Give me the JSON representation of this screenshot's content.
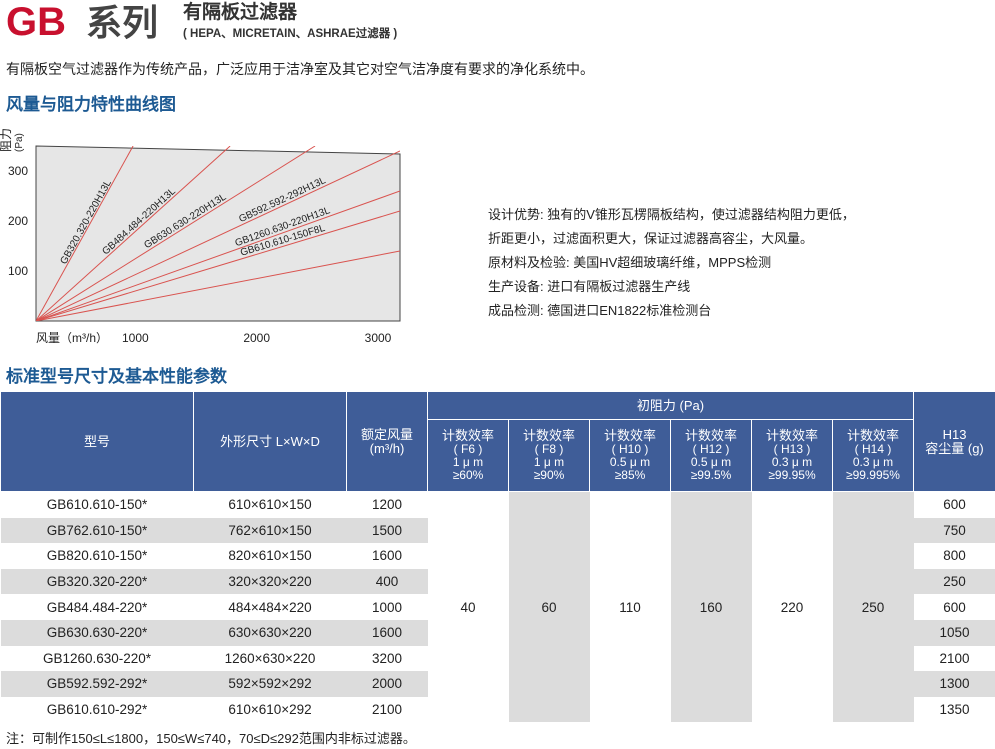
{
  "header": {
    "brand": "GB",
    "series": "系列",
    "subtitle": "有隔板过滤器",
    "standards": "( HEPA、MICRETAIN、ASHRAE过滤器 )",
    "intro": "有隔板空气过滤器作为传统产品，广泛应用于洁净室及其它对空气洁净度有要求的净化系统中。"
  },
  "section_titles": {
    "curve": "风量与阻力特性曲线图",
    "specs": "标准型号尺寸及基本性能参数"
  },
  "chart_data": {
    "type": "line",
    "title": "",
    "ylabel": "阻力",
    "ylabel_unit": "(Pa)",
    "xlabel": "风量（m³/h）",
    "xlim": [
      0,
      3000
    ],
    "ylim": [
      0,
      350
    ],
    "x_ticks": [
      "1000",
      "2000",
      "3000"
    ],
    "y_ticks": [
      "100",
      "200",
      "300"
    ],
    "grid": false,
    "series_color": "#d9534f",
    "series": [
      {
        "name": "GB320.320-220H13L",
        "x": [
          0,
          800
        ],
        "y": [
          0,
          350
        ]
      },
      {
        "name": "GB484.484-220H13L",
        "x": [
          0,
          1600
        ],
        "y": [
          0,
          350
        ]
      },
      {
        "name": "GB630.630-220H13L",
        "x": [
          0,
          2300
        ],
        "y": [
          0,
          350
        ]
      },
      {
        "name": "GB592.592-292H13L",
        "x": [
          0,
          3000
        ],
        "y": [
          0,
          340
        ]
      },
      {
        "name": "GB1260.630-220H13L",
        "x": [
          0,
          3000
        ],
        "y": [
          0,
          260
        ]
      },
      {
        "name": "GB610.610-150F8L",
        "x": [
          0,
          3000
        ],
        "y": [
          0,
          220
        ]
      },
      {
        "name": "",
        "x": [
          0,
          3000
        ],
        "y": [
          0,
          140
        ]
      }
    ]
  },
  "features": [
    "设计优势: 独有的V锥形瓦楞隔板结构，使过滤器结构阻力更低，",
    "折距更小，过滤面积更大，保证过滤器高容尘，大风量。",
    "原材料及检验: 美国HV超细玻璃纤维，MPPS检测",
    "生产设备: 进口有隔板过滤器生产线",
    "成品检测: 德国进口EN1822标准检测台"
  ],
  "table": {
    "col_model": "型号",
    "col_size": "外形尺寸 L×W×D",
    "col_airflow": "额定风量",
    "col_airflow_unit": "(m³/h)",
    "col_resistance": "初阻力 (Pa)",
    "col_dust_1": "H13",
    "col_dust_2": "容尘量 (g)",
    "efficiency_cols": [
      {
        "label": "计数效率",
        "grade": "( F6 )",
        "particle": "1 μ m",
        "eff": "≥60%",
        "value": "40"
      },
      {
        "label": "计数效率",
        "grade": "( F8 )",
        "particle": "1 μ m",
        "eff": "≥90%",
        "value": "60"
      },
      {
        "label": "计数效率",
        "grade": "( H10 )",
        "particle": "0.5 μ m",
        "eff": "≥85%",
        "value": "110"
      },
      {
        "label": "计数效率",
        "grade": "( H12 )",
        "particle": "0.5 μ m",
        "eff": "≥99.5%",
        "value": "160"
      },
      {
        "label": "计数效率",
        "grade": "( H13 )",
        "particle": "0.3 μ m",
        "eff": "≥99.95%",
        "value": "220"
      },
      {
        "label": "计数效率",
        "grade": "( H14 )",
        "particle": "0.3 μ m",
        "eff": "≥99.995%",
        "value": "250"
      }
    ],
    "rows": [
      {
        "model": "GB610.610-150*",
        "size": "610×610×150",
        "airflow": "1200",
        "dust": "600"
      },
      {
        "model": "GB762.610-150*",
        "size": "762×610×150",
        "airflow": "1500",
        "dust": "750"
      },
      {
        "model": "GB820.610-150*",
        "size": "820×610×150",
        "airflow": "1600",
        "dust": "800"
      },
      {
        "model": "GB320.320-220*",
        "size": "320×320×220",
        "airflow": "400",
        "dust": "250"
      },
      {
        "model": "GB484.484-220*",
        "size": "484×484×220",
        "airflow": "1000",
        "dust": "600"
      },
      {
        "model": "GB630.630-220*",
        "size": "630×630×220",
        "airflow": "1600",
        "dust": "1050"
      },
      {
        "model": "GB1260.630-220*",
        "size": "1260×630×220",
        "airflow": "3200",
        "dust": "2100"
      },
      {
        "model": "GB592.592-292*",
        "size": "592×592×292",
        "airflow": "2000",
        "dust": "1300"
      },
      {
        "model": "GB610.610-292*",
        "size": "610×610×292",
        "airflow": "2100",
        "dust": "1350"
      }
    ],
    "note": "注：可制作150≤L≤1800，150≤W≤740，70≤D≤292范围内非标过滤器。"
  }
}
